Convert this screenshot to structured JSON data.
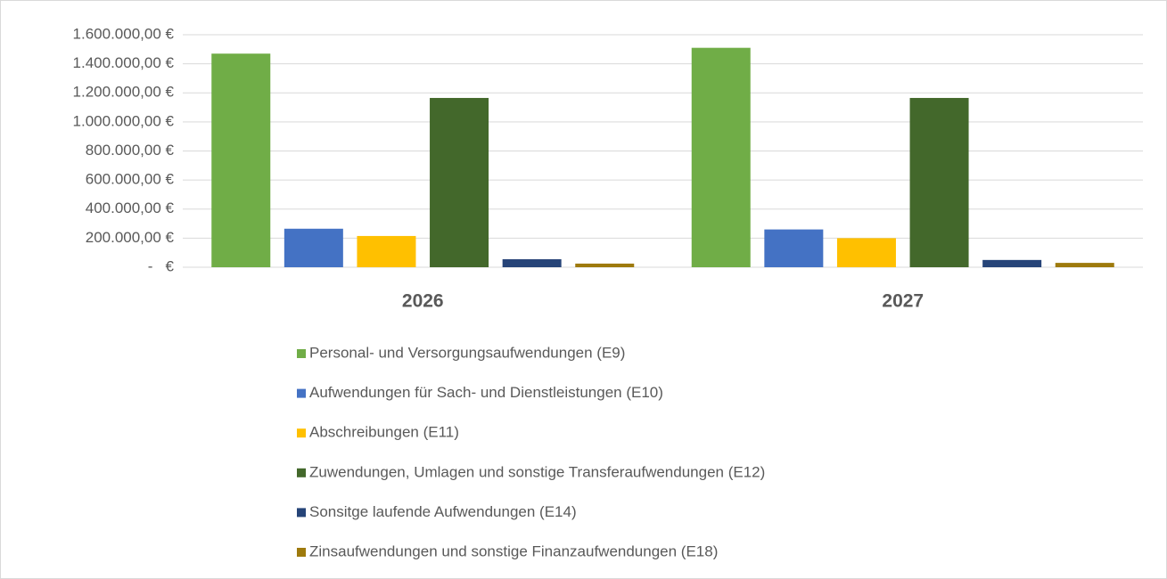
{
  "chart_data": {
    "type": "bar",
    "categories": [
      "2026",
      "2027"
    ],
    "series": [
      {
        "name": "Personal- und Versorgungsaufwendungen (E9)",
        "color": "#70ad47",
        "values": [
          1470000,
          1510000
        ]
      },
      {
        "name": "Aufwendungen für Sach- und Dienstleistungen (E10)",
        "color": "#4472c4",
        "values": [
          265000,
          260000
        ]
      },
      {
        "name": "Abschreibungen (E11)",
        "color": "#ffc000",
        "values": [
          215000,
          200000
        ]
      },
      {
        "name": "Zuwendungen, Umlagen und sonstige Transferaufwendungen (E12)",
        "color": "#43682b",
        "values": [
          1165000,
          1165000
        ]
      },
      {
        "name": "Sonsitge laufende Aufwendungen (E14)",
        "color": "#264478",
        "values": [
          55000,
          50000
        ]
      },
      {
        "name": "Zinsaufwendungen und sonstige Finanzaufwendungen (E18)",
        "color": "#9e7a0d",
        "values": [
          25000,
          30000
        ]
      }
    ],
    "ylim": [
      0,
      1600000
    ],
    "yticks": [
      {
        "value": 0,
        "label": "-   €"
      },
      {
        "value": 200000,
        "label": "200.000,00 €"
      },
      {
        "value": 400000,
        "label": "400.000,00 €"
      },
      {
        "value": 600000,
        "label": "600.000,00 €"
      },
      {
        "value": 800000,
        "label": "800.000,00 €"
      },
      {
        "value": 1000000,
        "label": "1.000.000,00 €"
      },
      {
        "value": 1200000,
        "label": "1.200.000,00 €"
      },
      {
        "value": 1400000,
        "label": "1.400.000,00 €"
      },
      {
        "value": 1600000,
        "label": "1.600.000,00 €"
      }
    ],
    "grid": true,
    "legend": "bottom"
  }
}
